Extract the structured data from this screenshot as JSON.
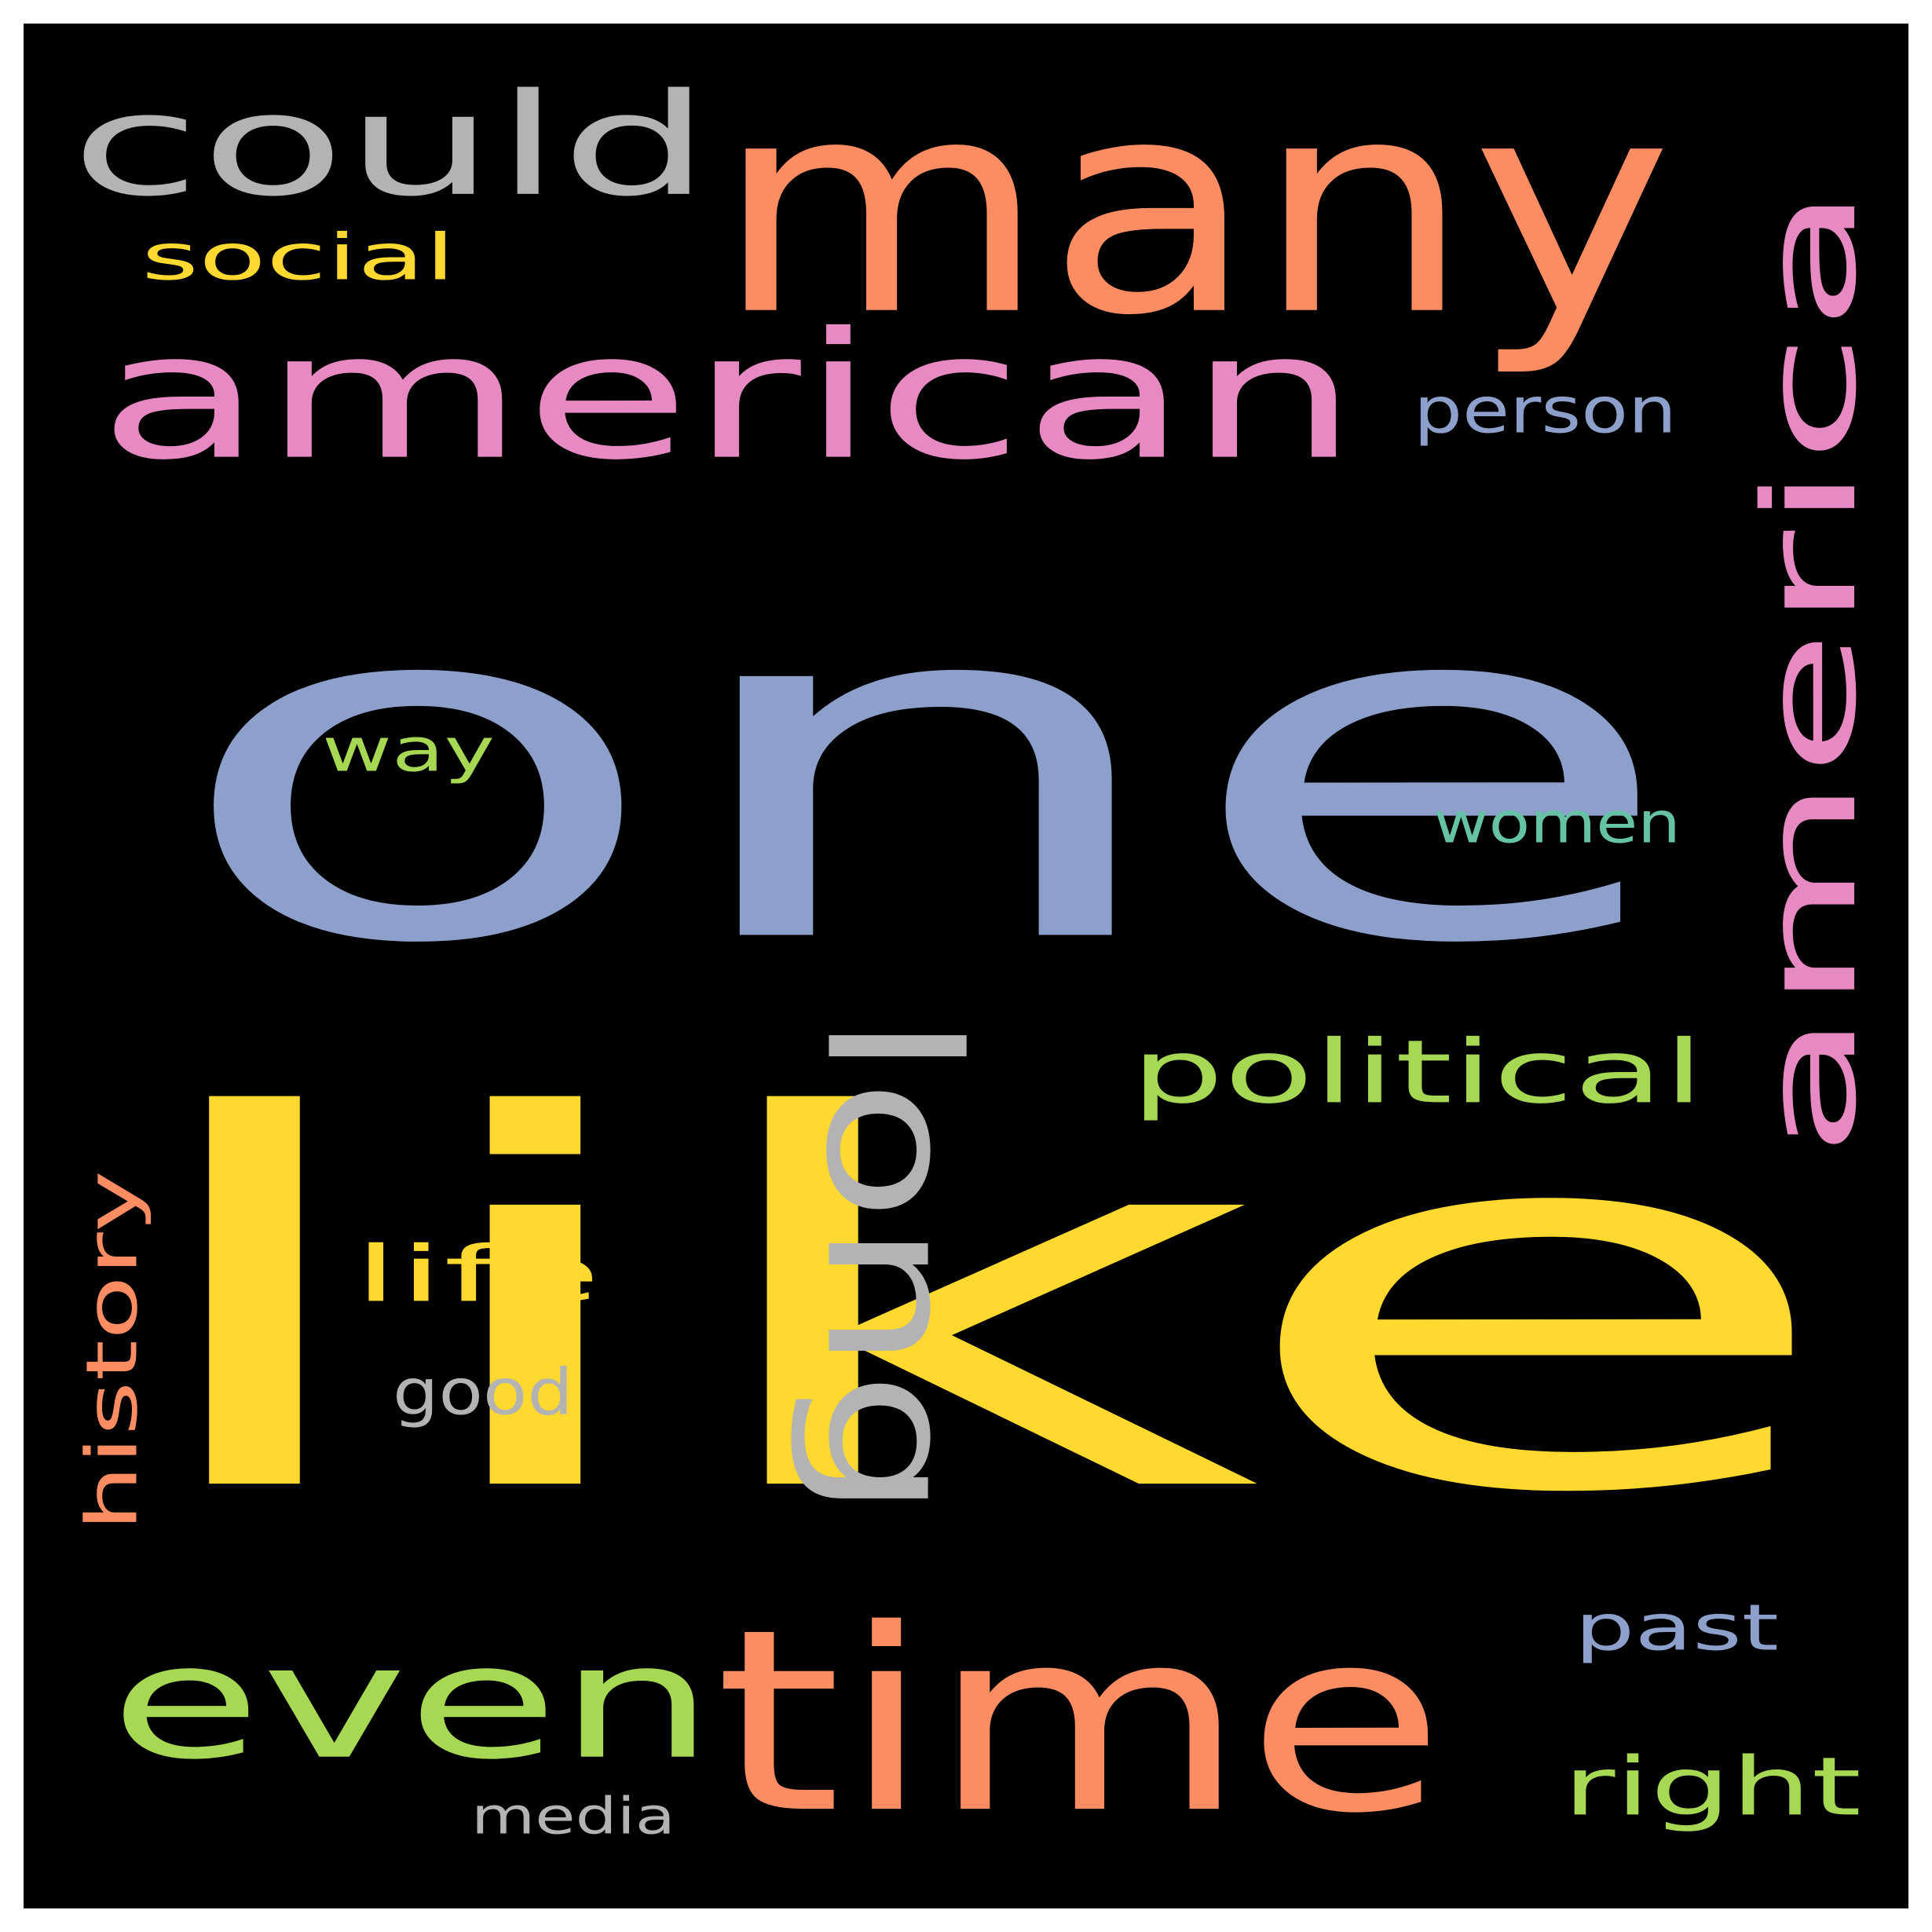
{
  "wordcloud": {
    "background": "#000000",
    "words": [
      {
        "id": "one",
        "text": "one",
        "color": "#8DA0CB"
      },
      {
        "id": "like",
        "text": "like",
        "color": "#FFD92F"
      },
      {
        "id": "many",
        "text": "many",
        "color": "#FC8D62"
      },
      {
        "id": "american",
        "text": "american",
        "color": "#E78AC3"
      },
      {
        "id": "could",
        "text": "could",
        "color": "#B3B3B3"
      },
      {
        "id": "america",
        "text": "america",
        "color": "#E78AC3"
      },
      {
        "id": "time",
        "text": "time",
        "color": "#FC8D62"
      },
      {
        "id": "even",
        "text": "even",
        "color": "#A6D854"
      },
      {
        "id": "long",
        "text": "long",
        "color": "#B3B3B3"
      },
      {
        "id": "political",
        "text": "political",
        "color": "#A6D854"
      },
      {
        "id": "social",
        "text": "social",
        "color": "#FFD92F"
      },
      {
        "id": "person",
        "text": "person",
        "color": "#8DA0CB"
      },
      {
        "id": "way",
        "text": "way",
        "color": "#A6D854"
      },
      {
        "id": "women",
        "text": "women",
        "color": "#66C2A5"
      },
      {
        "id": "life",
        "text": "life",
        "color": "#FFD92F"
      },
      {
        "id": "history",
        "text": "history",
        "color": "#FC8D62"
      },
      {
        "id": "good",
        "text": "good",
        "color": "#B3B3B3"
      },
      {
        "id": "past",
        "text": "past",
        "color": "#8DA0CB"
      },
      {
        "id": "right",
        "text": "right",
        "color": "#A6D854"
      },
      {
        "id": "media",
        "text": "media",
        "color": "#B3B3B3"
      }
    ]
  }
}
